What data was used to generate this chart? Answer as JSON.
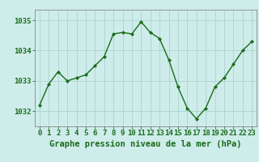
{
  "x": [
    0,
    1,
    2,
    3,
    4,
    5,
    6,
    7,
    8,
    9,
    10,
    11,
    12,
    13,
    14,
    15,
    16,
    17,
    18,
    19,
    20,
    21,
    22,
    23
  ],
  "y": [
    1032.2,
    1032.9,
    1033.3,
    1033.0,
    1033.1,
    1033.2,
    1033.5,
    1033.8,
    1034.55,
    1034.6,
    1034.55,
    1034.95,
    1034.6,
    1034.4,
    1033.7,
    1032.8,
    1032.1,
    1031.75,
    1032.1,
    1032.8,
    1033.1,
    1033.55,
    1034.0,
    1034.3
  ],
  "line_color": "#1a6b1a",
  "marker": "D",
  "marker_size": 2.2,
  "linewidth": 1.0,
  "bg_color": "#ceecea",
  "grid_color": "#aed8d4",
  "ylabel_ticks": [
    1032,
    1033,
    1034,
    1035
  ],
  "xlabel_ticks": [
    0,
    1,
    2,
    3,
    4,
    5,
    6,
    7,
    8,
    9,
    10,
    11,
    12,
    13,
    14,
    15,
    16,
    17,
    18,
    19,
    20,
    21,
    22,
    23
  ],
  "ylim": [
    1031.5,
    1035.35
  ],
  "xlim": [
    -0.5,
    23.5
  ],
  "xlabel": "Graphe pression niveau de la mer (hPa)",
  "xlabel_color": "#1a6b1a",
  "tick_color": "#1a6b1a",
  "axis_color": "#888888",
  "xlabel_fontsize": 7.5,
  "tick_fontsize": 6.5
}
